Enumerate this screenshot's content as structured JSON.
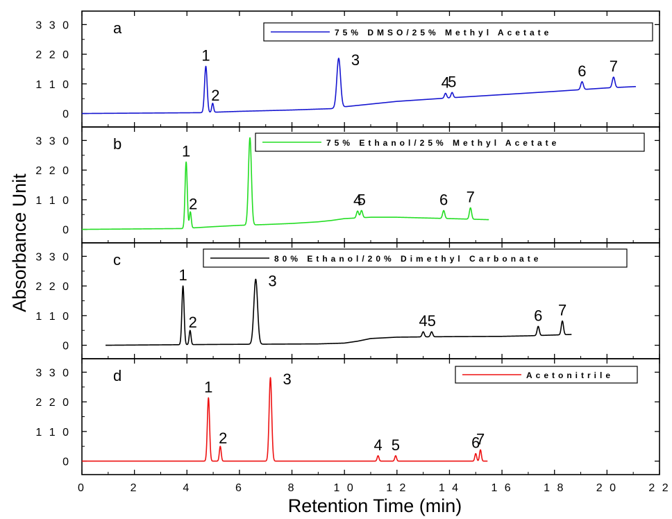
{
  "chart_data": {
    "type": "line",
    "xlabel": "Retention Time (min)",
    "ylabel": "Absorbance Unit",
    "xlim": [
      0,
      22
    ],
    "xticks": [
      0,
      2,
      4,
      6,
      8,
      10,
      12,
      14,
      16,
      18,
      20,
      22
    ],
    "xtick_labels": [
      "0",
      "2",
      "4",
      "6",
      "8",
      "1 0",
      "1 2",
      "1 4",
      "1 6",
      "1 8",
      "2 0",
      "2 2"
    ],
    "ylim": [
      -50,
      380
    ],
    "yticks": [
      0,
      110,
      220,
      330
    ],
    "ytick_labels": [
      "0",
      "1 1 0",
      "2 2 0",
      "3 3 0"
    ],
    "panels": [
      {
        "label": "a",
        "legend": "75% DMSO/25% Methyl Acetate",
        "color": "#1515d0",
        "x_end": 21.1,
        "baseline": [
          [
            0,
            0
          ],
          [
            4.5,
            3
          ],
          [
            6,
            8
          ],
          [
            8,
            13
          ],
          [
            9.5,
            18
          ],
          [
            10,
            25
          ],
          [
            11,
            35
          ],
          [
            12,
            45
          ],
          [
            14,
            58
          ],
          [
            16,
            70
          ],
          [
            18,
            82
          ],
          [
            20,
            95
          ],
          [
            21.1,
            100
          ]
        ],
        "peaks": [
          {
            "label": "1",
            "x": 4.72,
            "height": 175,
            "width": 0.07
          },
          {
            "label": "2",
            "x": 4.98,
            "height": 38,
            "width": 0.05
          },
          {
            "label": "3",
            "x": 9.78,
            "height": 205,
            "width": 0.1
          },
          {
            "label": "4",
            "x": 13.85,
            "height": 75,
            "width": 0.06
          },
          {
            "label": "5",
            "x": 14.1,
            "height": 78,
            "width": 0.06
          },
          {
            "label": "6",
            "x": 19.05,
            "height": 118,
            "width": 0.07
          },
          {
            "label": "7",
            "x": 20.25,
            "height": 135,
            "width": 0.07
          }
        ]
      },
      {
        "label": "b",
        "legend": "75% Ethanol/25% Methyl Acetate",
        "color": "#22dd22",
        "x_end": 15.5,
        "baseline": [
          [
            0,
            0
          ],
          [
            3.8,
            3
          ],
          [
            5,
            10
          ],
          [
            6,
            15
          ],
          [
            7,
            18
          ],
          [
            8,
            22
          ],
          [
            9,
            28
          ],
          [
            9.5,
            33
          ],
          [
            10,
            40
          ],
          [
            11,
            45
          ],
          [
            12,
            45
          ],
          [
            14,
            40
          ],
          [
            15.5,
            36
          ]
        ],
        "peaks": [
          {
            "label": "1",
            "x": 3.97,
            "height": 250,
            "width": 0.06
          },
          {
            "label": "2",
            "x": 4.13,
            "height": 65,
            "width": 0.05
          },
          {
            "label": "3",
            "x": 6.4,
            "height": 340,
            "width": 0.08
          },
          {
            "label": "4",
            "x": 10.5,
            "height": 68,
            "width": 0.06
          },
          {
            "label": "5",
            "x": 10.65,
            "height": 70,
            "width": 0.06
          },
          {
            "label": "6",
            "x": 13.78,
            "height": 70,
            "width": 0.06
          },
          {
            "label": "7",
            "x": 14.8,
            "height": 80,
            "width": 0.06
          }
        ]
      },
      {
        "label": "c",
        "legend": "80% Ethanol/20% Dimethyl Carbonate",
        "color": "#000000",
        "x_end": 18.65,
        "baseline": [
          [
            0.9,
            0
          ],
          [
            3.7,
            2
          ],
          [
            5,
            3
          ],
          [
            7,
            4
          ],
          [
            9,
            5
          ],
          [
            10,
            8
          ],
          [
            10.5,
            15
          ],
          [
            11,
            25
          ],
          [
            12,
            30
          ],
          [
            14,
            32
          ],
          [
            16,
            33
          ],
          [
            17,
            35
          ],
          [
            18,
            38
          ],
          [
            18.65,
            40
          ]
        ],
        "peaks": [
          {
            "label": "1",
            "x": 3.85,
            "height": 220,
            "width": 0.06
          },
          {
            "label": "2",
            "x": 4.12,
            "height": 55,
            "width": 0.05
          },
          {
            "label": "3",
            "x": 6.62,
            "height": 245,
            "width": 0.1
          },
          {
            "label": "4",
            "x": 13.0,
            "height": 50,
            "width": 0.06
          },
          {
            "label": "5",
            "x": 13.32,
            "height": 50,
            "width": 0.06
          },
          {
            "label": "6",
            "x": 17.38,
            "height": 70,
            "width": 0.06
          },
          {
            "label": "7",
            "x": 18.3,
            "height": 90,
            "width": 0.06
          }
        ]
      },
      {
        "label": "d",
        "legend": "Acetonitrile",
        "color": "#ee1111",
        "x_end": 15.45,
        "baseline": [
          [
            0,
            0
          ],
          [
            15.45,
            0
          ]
        ],
        "peaks": [
          {
            "label": "1",
            "x": 4.82,
            "height": 235,
            "width": 0.06
          },
          {
            "label": "2",
            "x": 5.27,
            "height": 55,
            "width": 0.05
          },
          {
            "label": "3",
            "x": 7.18,
            "height": 310,
            "width": 0.07
          },
          {
            "label": "4",
            "x": 11.28,
            "height": 20,
            "width": 0.05
          },
          {
            "label": "5",
            "x": 11.95,
            "height": 20,
            "width": 0.05
          },
          {
            "label": "6",
            "x": 15.0,
            "height": 28,
            "width": 0.05
          },
          {
            "label": "7",
            "x": 15.18,
            "height": 42,
            "width": 0.05
          }
        ]
      }
    ]
  }
}
